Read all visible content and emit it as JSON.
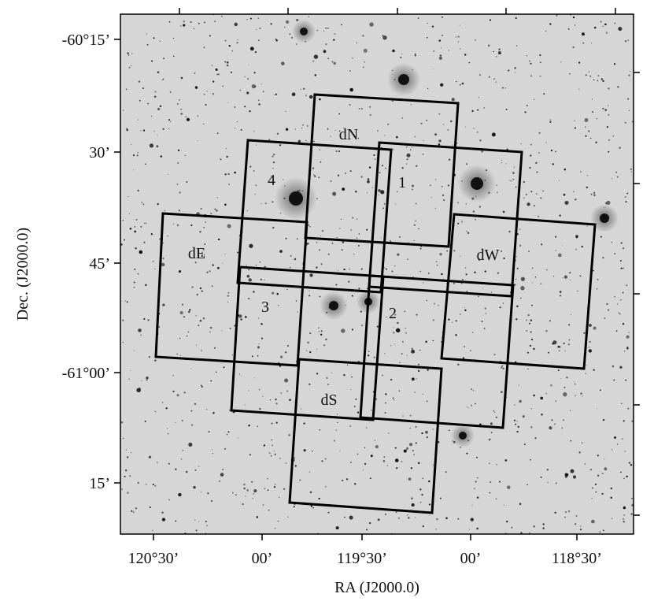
{
  "axes": {
    "x_label": "RA (J2000.0)",
    "y_label": "Dec. (J2000.0)",
    "x_ticks": [
      "120°30’",
      "00’",
      "119°30’",
      "00’",
      "118°30’"
    ],
    "y_ticks": [
      "-60°15’",
      "30’",
      "45’",
      "-61°00’",
      "15’"
    ]
  },
  "fields": [
    "dN",
    "1",
    "4",
    "dW",
    "dE",
    "3",
    "2",
    "dS"
  ]
}
